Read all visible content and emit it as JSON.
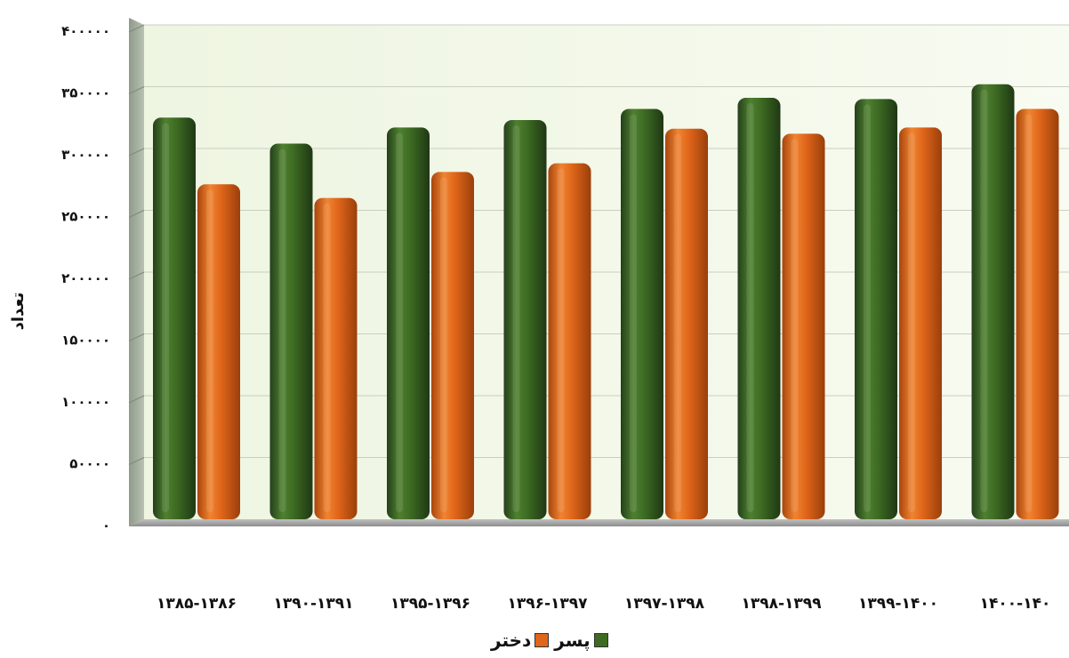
{
  "chart_data": {
    "type": "bar",
    "ylabel": "تعداد",
    "ylim": [
      0,
      400000
    ],
    "yticks": [
      0,
      50000,
      100000,
      150000,
      200000,
      250000,
      300000,
      350000,
      400000
    ],
    "ytick_labels": [
      "۰",
      "۵۰۰۰۰",
      "۱۰۰۰۰۰",
      "۱۵۰۰۰۰",
      "۲۰۰۰۰۰",
      "۲۵۰۰۰۰",
      "۳۰۰۰۰۰",
      "۳۵۰۰۰۰",
      "۴۰۰۰۰۰"
    ],
    "categories": [
      "۱۳۸۵-۱۳۸۶",
      "۱۳۹۰-۱۳۹۱",
      "۱۳۹۵-۱۳۹۶",
      "۱۳۹۶-۱۳۹۷",
      "۱۳۹۷-۱۳۹۸",
      "۱۳۹۸-۱۳۹۹",
      "۱۳۹۹-۱۴۰۰",
      "۱۴۰۰-۱۴۰"
    ],
    "grid": true,
    "legend_position": "bottom",
    "series": [
      {
        "name": "پسر",
        "color": "#3d6b22",
        "values": [
          325000,
          304000,
          317000,
          323000,
          332000,
          341000,
          340000,
          352000
        ]
      },
      {
        "name": "دختر",
        "color": "#e0661a",
        "values": [
          271000,
          260000,
          281000,
          288000,
          316000,
          312000,
          317000,
          332000
        ]
      }
    ]
  }
}
